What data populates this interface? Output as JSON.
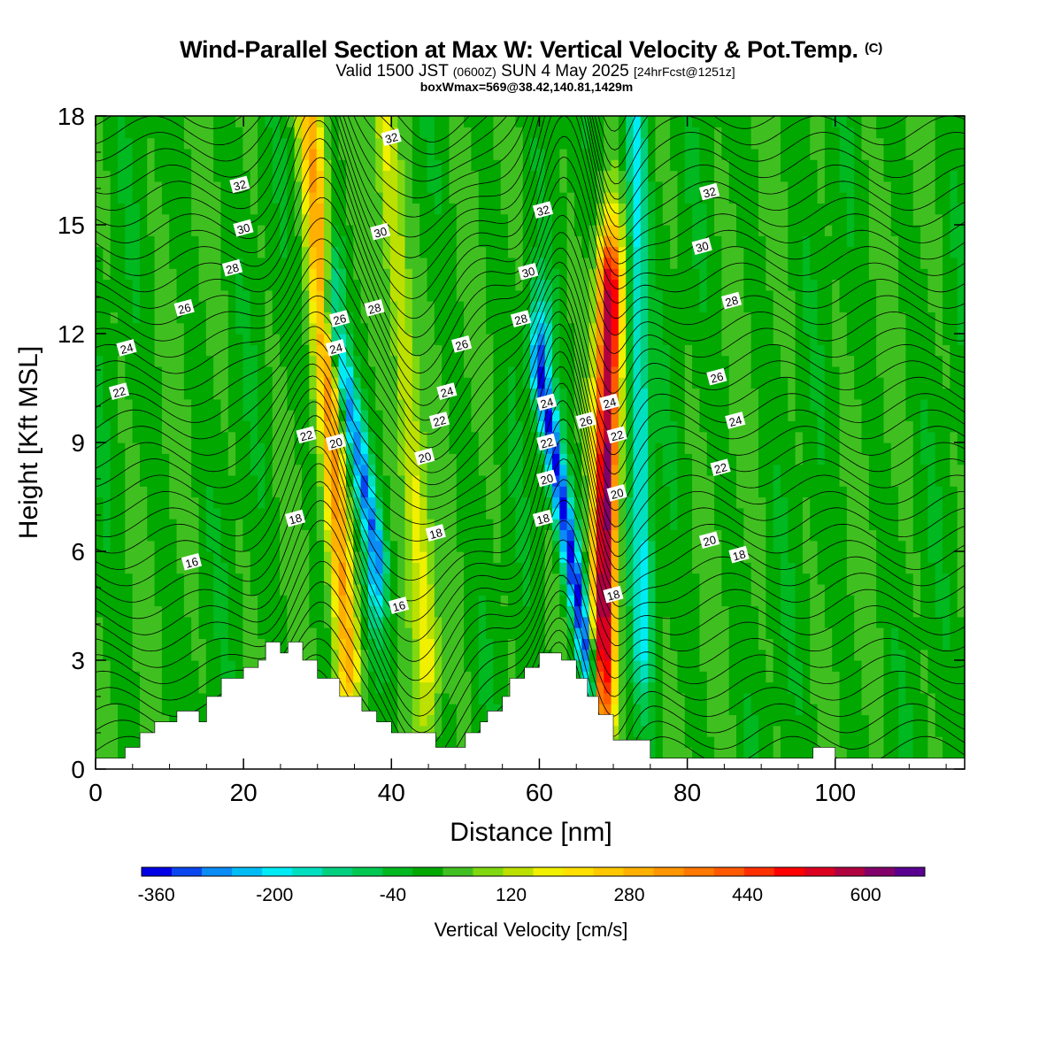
{
  "header": {
    "title_main": "Wind-Parallel Section at Max W: Vertical Velocity & Pot.Temp.",
    "title_mark": "(C)",
    "valid_prefix": "Valid 1500 JST",
    "valid_zulu": "(0600Z)",
    "valid_date": "SUN 4 May 2025",
    "valid_fcst": "[24hrFcst@1251z]",
    "box_info": "boxWmax=569@38.42,140.81,1429m"
  },
  "chart_data": {
    "type": "heatmap",
    "title": "Wind-Parallel Section at Max W: Vertical Velocity & Pot.Temp.",
    "xlabel": "Distance [nm]",
    "ylabel": "Height [Kft MSL]",
    "xlim": [
      0,
      117.5
    ],
    "ylim": [
      0,
      18
    ],
    "x_ticks": [
      0,
      20,
      40,
      60,
      80,
      100
    ],
    "y_ticks": [
      0,
      3,
      6,
      9,
      12,
      15,
      18
    ],
    "terrain_profile": {
      "x": [
        0,
        4,
        6,
        8,
        11,
        14,
        15,
        17,
        20,
        22,
        23,
        25,
        26,
        27,
        28,
        30,
        33,
        36,
        38,
        40,
        44,
        46,
        50,
        52,
        53,
        55,
        56,
        58,
        60,
        63,
        65,
        66.5,
        68,
        70,
        75,
        85,
        95,
        97,
        100,
        110,
        117.5
      ],
      "height": [
        0.3,
        0.6,
        1.0,
        1.3,
        1.6,
        1.3,
        2.0,
        2.5,
        2.8,
        3.0,
        3.5,
        3.2,
        3.5,
        3.5,
        3.0,
        2.5,
        2.0,
        1.6,
        1.3,
        1.0,
        1.0,
        0.6,
        1.0,
        1.3,
        1.6,
        2.0,
        2.5,
        2.8,
        3.2,
        3.0,
        2.5,
        2.0,
        1.5,
        0.8,
        0.3,
        0.3,
        0.3,
        0.6,
        0.3,
        0.3,
        0.3
      ]
    },
    "vertical_velocity_features": [
      {
        "type": "updraft",
        "x": [
          34,
          29
        ],
        "height": [
          3,
          18
        ],
        "max_cms": 280
      },
      {
        "type": "downdraft",
        "x": [
          38,
          32
        ],
        "height": [
          6,
          12.5
        ],
        "min_cms": -280
      },
      {
        "type": "updraft",
        "x": [
          45,
          39
        ],
        "height": [
          3,
          18
        ],
        "max_cms": 160
      },
      {
        "type": "downdraft",
        "x": [
          67,
          60
        ],
        "height": [
          2.5,
          11
        ],
        "min_cms": -360
      },
      {
        "type": "updraft",
        "x": [
          68.5,
          69.5
        ],
        "height": [
          2.5,
          13
        ],
        "max_cms": 569
      },
      {
        "type": "downdraft",
        "x": [
          74,
          73
        ],
        "height": [
          4,
          18
        ],
        "min_cms": -200
      }
    ],
    "colorbar": {
      "label": "Vertical Velocity [cm/s]",
      "min": -380,
      "max": 680,
      "step": 40,
      "tick_labels": [
        "-360",
        "-200",
        "-40",
        "120",
        "280",
        "440",
        "600"
      ],
      "colors": [
        "#0000e6",
        "#0a46f0",
        "#0a8cf5",
        "#00bcf4",
        "#00ecf5",
        "#00e0c0",
        "#00d080",
        "#00c850",
        "#00b820",
        "#00a800",
        "#40c020",
        "#80d810",
        "#bce000",
        "#f0f000",
        "#ffe000",
        "#ffc800",
        "#ffb000",
        "#ff9600",
        "#ff7800",
        "#ff5a00",
        "#ff3000",
        "#ff0000",
        "#dc0020",
        "#b00040",
        "#82006a",
        "#5a0090"
      ]
    },
    "theta_contours": {
      "series_label": "Pot.Temp. (C)",
      "levels": [
        16,
        18,
        20,
        22,
        24,
        26,
        28,
        30,
        32
      ],
      "labels": [
        {
          "text": "32",
          "x": 40,
          "y": 17.4
        },
        {
          "text": "32",
          "x": 19.5,
          "y": 16.1
        },
        {
          "text": "30",
          "x": 20,
          "y": 14.9
        },
        {
          "text": "28",
          "x": 18.5,
          "y": 13.8
        },
        {
          "text": "26",
          "x": 12,
          "y": 12.7
        },
        {
          "text": "24",
          "x": 4.2,
          "y": 11.6
        },
        {
          "text": "22",
          "x": 3.2,
          "y": 10.4
        },
        {
          "text": "30",
          "x": 38.5,
          "y": 14.8
        },
        {
          "text": "28",
          "x": 37.7,
          "y": 12.7
        },
        {
          "text": "26",
          "x": 33,
          "y": 12.4
        },
        {
          "text": "24",
          "x": 32.5,
          "y": 11.6
        },
        {
          "text": "22",
          "x": 28.5,
          "y": 9.2
        },
        {
          "text": "20",
          "x": 32.5,
          "y": 9.0
        },
        {
          "text": "18",
          "x": 27,
          "y": 6.9
        },
        {
          "text": "16",
          "x": 13,
          "y": 5.7
        },
        {
          "text": "26",
          "x": 49.5,
          "y": 11.7
        },
        {
          "text": "24",
          "x": 47.5,
          "y": 10.4
        },
        {
          "text": "22",
          "x": 46.5,
          "y": 9.6
        },
        {
          "text": "20",
          "x": 44.5,
          "y": 8.6
        },
        {
          "text": "18",
          "x": 46,
          "y": 6.5
        },
        {
          "text": "16",
          "x": 41,
          "y": 4.5
        },
        {
          "text": "32",
          "x": 60.5,
          "y": 15.4
        },
        {
          "text": "30",
          "x": 58.5,
          "y": 13.7
        },
        {
          "text": "28",
          "x": 57.5,
          "y": 12.4
        },
        {
          "text": "24",
          "x": 61,
          "y": 10.1
        },
        {
          "text": "22",
          "x": 61,
          "y": 9.0
        },
        {
          "text": "20",
          "x": 61,
          "y": 8.0
        },
        {
          "text": "18",
          "x": 60.5,
          "y": 6.9
        },
        {
          "text": "26",
          "x": 66.3,
          "y": 9.6
        },
        {
          "text": "24",
          "x": 69.5,
          "y": 10.1
        },
        {
          "text": "22",
          "x": 70.5,
          "y": 9.2
        },
        {
          "text": "20",
          "x": 70.5,
          "y": 7.6
        },
        {
          "text": "18",
          "x": 70,
          "y": 4.8
        },
        {
          "text": "32",
          "x": 83,
          "y": 15.9
        },
        {
          "text": "30",
          "x": 82,
          "y": 14.4
        },
        {
          "text": "28",
          "x": 86,
          "y": 12.9
        },
        {
          "text": "26",
          "x": 84,
          "y": 10.8
        },
        {
          "text": "24",
          "x": 86.5,
          "y": 9.6
        },
        {
          "text": "22",
          "x": 84.5,
          "y": 8.3
        },
        {
          "text": "20",
          "x": 83,
          "y": 6.3
        },
        {
          "text": "18",
          "x": 87,
          "y": 5.9
        }
      ]
    }
  }
}
